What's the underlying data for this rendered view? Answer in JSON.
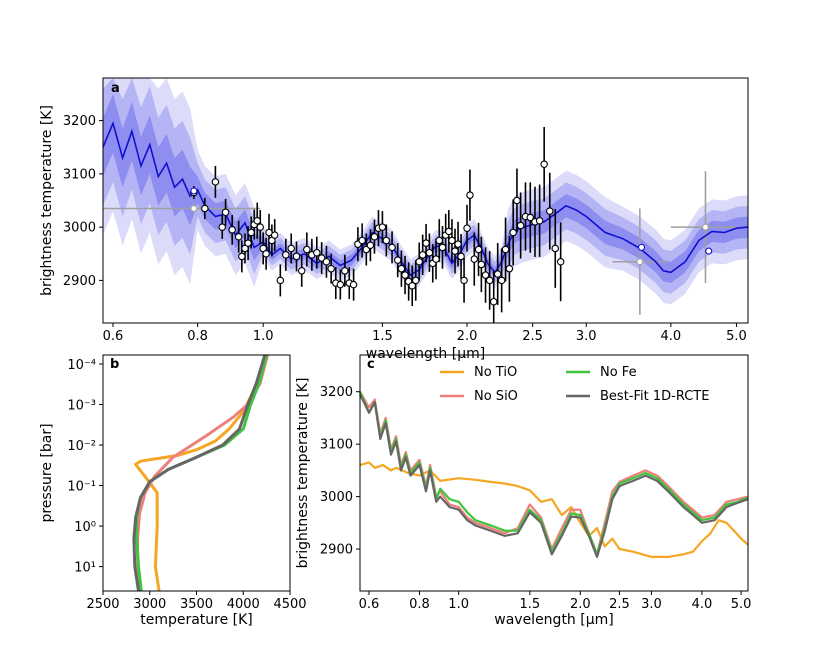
{
  "chart_data": [
    {
      "panel": "a",
      "type": "line",
      "xlabel": "wavelength [μm]",
      "ylabel": "brightness temperature [K]",
      "xscale": "log",
      "xlim": [
        0.58,
        5.2
      ],
      "ylim": [
        2820,
        3280
      ],
      "xticks": [
        0.6,
        0.8,
        1.0,
        1.5,
        2.0,
        2.5,
        3.0,
        4.0,
        5.0
      ],
      "xticklabels": [
        "0.6",
        "0.8",
        "1.0",
        "1.5",
        "2.0",
        "2.5",
        "3.0",
        "4.0",
        "5.0"
      ],
      "yticks": [
        2900,
        3000,
        3100,
        3200
      ],
      "yticklabels": [
        "2900",
        "3000",
        "3100",
        "3200"
      ],
      "model_median": {
        "x": [
          0.58,
          0.6,
          0.62,
          0.64,
          0.66,
          0.68,
          0.7,
          0.72,
          0.74,
          0.76,
          0.78,
          0.8,
          0.82,
          0.85,
          0.88,
          0.91,
          0.94,
          0.97,
          1.0,
          1.03,
          1.06,
          1.1,
          1.15,
          1.2,
          1.25,
          1.3,
          1.35,
          1.4,
          1.45,
          1.5,
          1.55,
          1.6,
          1.65,
          1.7,
          1.75,
          1.8,
          1.85,
          1.9,
          1.95,
          2.0,
          2.05,
          2.1,
          2.15,
          2.2,
          2.25,
          2.3,
          2.35,
          2.4,
          2.5,
          2.6,
          2.7,
          2.8,
          2.9,
          3.0,
          3.2,
          3.4,
          3.6,
          3.8,
          3.9,
          4.0,
          4.2,
          4.4,
          4.6,
          4.8,
          5.0,
          5.2
        ],
        "y": [
          3150,
          3195,
          3130,
          3180,
          3115,
          3155,
          3095,
          3120,
          3075,
          3090,
          3058,
          3070,
          3040,
          3020,
          3025,
          2985,
          3008,
          2962,
          2972,
          2948,
          2960,
          2940,
          2950,
          2932,
          2945,
          2928,
          2938,
          2962,
          2990,
          2978,
          2965,
          2935,
          2910,
          2920,
          2945,
          2965,
          2960,
          2932,
          2950,
          2975,
          2985,
          2960,
          2930,
          2915,
          2935,
          2968,
          2992,
          2998,
          3005,
          3010,
          3025,
          3040,
          3032,
          3020,
          2990,
          2978,
          2960,
          2935,
          2918,
          2915,
          2935,
          2975,
          2992,
          2990,
          2998,
          3000
        ]
      },
      "observed": {
        "x": [
          0.79,
          0.82,
          0.85,
          0.87,
          0.88,
          0.9,
          0.92,
          0.93,
          0.94,
          0.95,
          0.96,
          0.97,
          0.98,
          0.99,
          1.0,
          1.01,
          1.02,
          1.03,
          1.04,
          1.06,
          1.08,
          1.1,
          1.12,
          1.14,
          1.16,
          1.18,
          1.2,
          1.22,
          1.24,
          1.26,
          1.28,
          1.3,
          1.32,
          1.34,
          1.36,
          1.38,
          1.4,
          1.42,
          1.44,
          1.46,
          1.48,
          1.5,
          1.52,
          1.55,
          1.58,
          1.6,
          1.62,
          1.64,
          1.66,
          1.68,
          1.7,
          1.72,
          1.74,
          1.76,
          1.78,
          1.8,
          1.82,
          1.84,
          1.86,
          1.88,
          1.9,
          1.92,
          1.94,
          1.96,
          1.98,
          2.0,
          2.02,
          2.05,
          2.08,
          2.1,
          2.13,
          2.16,
          2.19,
          2.22,
          2.25,
          2.28,
          2.31,
          2.34,
          2.37,
          2.4,
          2.44,
          2.48,
          2.52,
          2.56,
          2.6,
          2.65,
          2.7,
          2.75
        ],
        "y": [
          3065,
          3035,
          3085,
          3000,
          3028,
          2995,
          2982,
          2945,
          2960,
          2970,
          2990,
          3005,
          3012,
          3000,
          2960,
          2950,
          2990,
          2975,
          2985,
          2900,
          2948,
          2960,
          2945,
          2918,
          2958,
          2948,
          2952,
          2942,
          2935,
          2922,
          2895,
          2892,
          2918,
          2895,
          2892,
          2968,
          2975,
          2958,
          2966,
          2982,
          2998,
          3000,
          2975,
          2962,
          2938,
          2922,
          2910,
          2898,
          2890,
          2900,
          2935,
          2948,
          2970,
          2952,
          2932,
          2940,
          2975,
          2962,
          2985,
          2992,
          2975,
          2955,
          2968,
          2945,
          2900,
          2998,
          3060,
          2940,
          2958,
          2930,
          2910,
          2900,
          2860,
          2912,
          2900,
          2958,
          2922,
          2990,
          3050,
          3003,
          3020,
          3018,
          3010,
          3012,
          3118,
          3030,
          2960,
          2935
        ],
        "yerr": [
          12,
          20,
          30,
          22,
          25,
          28,
          30,
          30,
          28,
          32,
          30,
          28,
          34,
          32,
          30,
          30,
          35,
          30,
          30,
          30,
          30,
          28,
          28,
          30,
          32,
          30,
          30,
          30,
          30,
          28,
          30,
          28,
          30,
          30,
          30,
          32,
          32,
          30,
          30,
          32,
          34,
          30,
          30,
          30,
          32,
          34,
          36,
          36,
          38,
          38,
          36,
          38,
          36,
          36,
          36,
          38,
          40,
          40,
          40,
          40,
          40,
          42,
          42,
          42,
          42,
          44,
          48,
          50,
          50,
          52,
          52,
          55,
          58,
          58,
          60,
          60,
          62,
          62,
          60,
          62,
          64,
          66,
          66,
          68,
          70,
          72,
          74,
          74
        ]
      },
      "gray_points": {
        "x": [
          0.79,
          3.6,
          4.5
        ],
        "y": [
          3035,
          2935,
          3000
        ],
        "xerr_lo": [
          0.21,
          0.32,
          0.5
        ],
        "xerr_hi": [
          0.2,
          0.35,
          0.5
        ],
        "yerr": [
          8,
          100,
          105
        ]
      },
      "extra_open_points": {
        "x": [
          0.79,
          3.62,
          4.55
        ],
        "y": [
          3068,
          2962,
          2955
        ]
      }
    },
    {
      "panel": "b",
      "type": "line",
      "xlabel": "temperature [K]",
      "ylabel": "pressure [bar]",
      "xlim": [
        2500,
        4500
      ],
      "yscale": "log",
      "yinverted": true,
      "ylim": [
        40,
        6e-05
      ],
      "xticks": [
        2500,
        3000,
        3500,
        4000,
        4500
      ],
      "xticklabels": [
        "2500",
        "3000",
        "3500",
        "4000",
        "4500"
      ],
      "yticks": [
        0.0001,
        0.001,
        0.01,
        0.1,
        1,
        10
      ],
      "yticklabels": [
        "10⁻⁴",
        "10⁻³",
        "10⁻²",
        "10⁻¹",
        "10⁰",
        "10¹"
      ],
      "series": [
        {
          "key": "no_tio",
          "color": "#f5a623",
          "T": [
            4230,
            4150,
            4000,
            3850,
            3700,
            3500,
            3300,
            2900,
            2850,
            2950,
            3080,
            3080,
            3060,
            3100
          ],
          "P": [
            6e-05,
            0.0003,
            0.0015,
            0.004,
            0.008,
            0.013,
            0.018,
            0.025,
            0.03,
            0.06,
            0.15,
            1,
            10,
            40
          ]
        },
        {
          "key": "no_sio",
          "color": "#ee7f7b",
          "T": [
            4260,
            4180,
            4050,
            3960,
            3900,
            3600,
            3250,
            3050,
            2950,
            2890,
            2870,
            2870,
            2890
          ],
          "P": [
            6e-05,
            0.0003,
            0.001,
            0.0015,
            0.002,
            0.006,
            0.02,
            0.06,
            0.15,
            0.5,
            2,
            10,
            40
          ]
        },
        {
          "key": "no_fe",
          "color": "#3ec43e",
          "T": [
            4250,
            4170,
            4080,
            4000,
            3800,
            3500,
            3200,
            3000,
            2900,
            2860,
            2860,
            2880,
            2910
          ],
          "P": [
            6e-05,
            0.0003,
            0.001,
            0.004,
            0.01,
            0.02,
            0.04,
            0.08,
            0.2,
            0.6,
            2,
            10,
            40
          ]
        },
        {
          "key": "best_fit",
          "color": "#666666",
          "T": [
            4230,
            4140,
            4050,
            3960,
            3780,
            3500,
            3200,
            3000,
            2900,
            2850,
            2830,
            2840,
            2880
          ],
          "P": [
            6e-05,
            0.0003,
            0.001,
            0.004,
            0.01,
            0.02,
            0.04,
            0.08,
            0.2,
            0.6,
            2,
            10,
            40
          ]
        }
      ]
    },
    {
      "panel": "c",
      "type": "line",
      "xlabel": "wavelength [μm]",
      "ylabel": "brightness temperature [K]",
      "xscale": "log",
      "xlim": [
        0.57,
        5.2
      ],
      "ylim": [
        2820,
        3270
      ],
      "xticks": [
        0.6,
        0.8,
        1.0,
        1.5,
        2.0,
        2.5,
        3.0,
        4.0,
        5.0
      ],
      "xticklabels": [
        "0.6",
        "0.8",
        "1.0",
        "1.5",
        "2.0",
        "2.5",
        "3.0",
        "4.0",
        "5.0"
      ],
      "yticks": [
        2900,
        3000,
        3100,
        3200
      ],
      "yticklabels": [
        "2900",
        "3000",
        "3100",
        "3200"
      ],
      "series": [
        {
          "key": "no_tio",
          "name": "No TiO",
          "color": "#f5a623",
          "x": [
            0.57,
            0.6,
            0.62,
            0.65,
            0.68,
            0.7,
            0.75,
            0.8,
            0.85,
            0.9,
            1.0,
            1.1,
            1.2,
            1.3,
            1.4,
            1.5,
            1.6,
            1.7,
            1.8,
            1.9,
            2.0,
            2.1,
            2.2,
            2.3,
            2.4,
            2.5,
            2.7,
            3.0,
            3.3,
            3.6,
            3.8,
            4.0,
            4.2,
            4.4,
            4.6,
            4.8,
            5.0,
            5.2
          ],
          "y": [
            3060,
            3065,
            3055,
            3060,
            3050,
            3055,
            3045,
            3040,
            3050,
            3030,
            3035,
            3032,
            3028,
            3025,
            3020,
            3012,
            2990,
            2995,
            2965,
            2980,
            2950,
            2925,
            2940,
            2905,
            2920,
            2900,
            2895,
            2885,
            2885,
            2890,
            2895,
            2915,
            2930,
            2955,
            2950,
            2935,
            2920,
            2908
          ]
        },
        {
          "key": "no_sio",
          "name": "No SiO",
          "color": "#ee7f7b",
          "x": [
            0.57,
            0.6,
            0.62,
            0.64,
            0.66,
            0.68,
            0.7,
            0.72,
            0.74,
            0.76,
            0.8,
            0.83,
            0.85,
            0.88,
            0.9,
            0.95,
            1.0,
            1.05,
            1.1,
            1.2,
            1.3,
            1.4,
            1.5,
            1.6,
            1.7,
            1.8,
            1.9,
            2.0,
            2.1,
            2.2,
            2.3,
            2.4,
            2.5,
            2.7,
            2.9,
            3.1,
            3.3,
            3.6,
            3.8,
            4.0,
            4.3,
            4.6,
            4.9,
            5.2
          ],
          "y": [
            3200,
            3170,
            3185,
            3120,
            3150,
            3090,
            3115,
            3060,
            3085,
            3050,
            3070,
            3020,
            3060,
            3000,
            3010,
            2985,
            2980,
            2960,
            2950,
            2940,
            2930,
            2940,
            2985,
            2960,
            2900,
            2940,
            2975,
            2975,
            2930,
            2890,
            2950,
            3010,
            3028,
            3040,
            3050,
            3040,
            3020,
            2990,
            2975,
            2960,
            2965,
            2990,
            2995,
            3000
          ]
        },
        {
          "key": "no_fe",
          "name": "No Fe",
          "color": "#3ec43e",
          "x": [
            0.57,
            0.6,
            0.62,
            0.64,
            0.66,
            0.68,
            0.7,
            0.72,
            0.74,
            0.76,
            0.8,
            0.83,
            0.85,
            0.88,
            0.9,
            0.95,
            1.0,
            1.05,
            1.1,
            1.2,
            1.3,
            1.4,
            1.5,
            1.6,
            1.7,
            1.8,
            1.9,
            2.0,
            2.1,
            2.2,
            2.3,
            2.4,
            2.5,
            2.7,
            2.9,
            3.1,
            3.3,
            3.6,
            3.8,
            4.0,
            4.3,
            4.6,
            4.9,
            5.2
          ],
          "y": [
            3200,
            3160,
            3180,
            3115,
            3145,
            3085,
            3110,
            3055,
            3080,
            3045,
            3065,
            3015,
            3055,
            2995,
            3015,
            2995,
            2990,
            2970,
            2955,
            2945,
            2935,
            2935,
            2975,
            2955,
            2895,
            2930,
            2968,
            2965,
            2930,
            2890,
            2940,
            3000,
            3025,
            3035,
            3045,
            3035,
            3015,
            2985,
            2970,
            2955,
            2960,
            2985,
            2990,
            2998
          ]
        },
        {
          "key": "best_fit",
          "name": "Best-Fit 1D-RCTE",
          "color": "#666666",
          "x": [
            0.57,
            0.6,
            0.62,
            0.64,
            0.66,
            0.68,
            0.7,
            0.72,
            0.74,
            0.76,
            0.8,
            0.83,
            0.85,
            0.88,
            0.9,
            0.95,
            1.0,
            1.05,
            1.1,
            1.2,
            1.3,
            1.4,
            1.5,
            1.6,
            1.7,
            1.8,
            1.9,
            2.0,
            2.1,
            2.2,
            2.3,
            2.4,
            2.5,
            2.7,
            2.9,
            3.1,
            3.3,
            3.6,
            3.8,
            4.0,
            4.3,
            4.6,
            4.9,
            5.2
          ],
          "y": [
            3195,
            3160,
            3180,
            3110,
            3140,
            3080,
            3105,
            3050,
            3075,
            3040,
            3060,
            3010,
            3050,
            2990,
            3000,
            2980,
            2975,
            2955,
            2945,
            2935,
            2925,
            2930,
            2970,
            2950,
            2890,
            2925,
            2962,
            2960,
            2925,
            2885,
            2935,
            2995,
            3020,
            3030,
            3040,
            3030,
            3010,
            2980,
            2965,
            2950,
            2955,
            2980,
            2988,
            2995
          ]
        }
      ],
      "legend": {
        "placement": "top-right",
        "columns": 2
      }
    }
  ],
  "colors": {
    "model_line": "#1010d0",
    "band_inner": "#8e8ef0",
    "band_middle": "#b5b5f5",
    "band_outer": "#dcdcfa",
    "gray_points": "#a0a0a0",
    "errorbar": "#000000"
  }
}
